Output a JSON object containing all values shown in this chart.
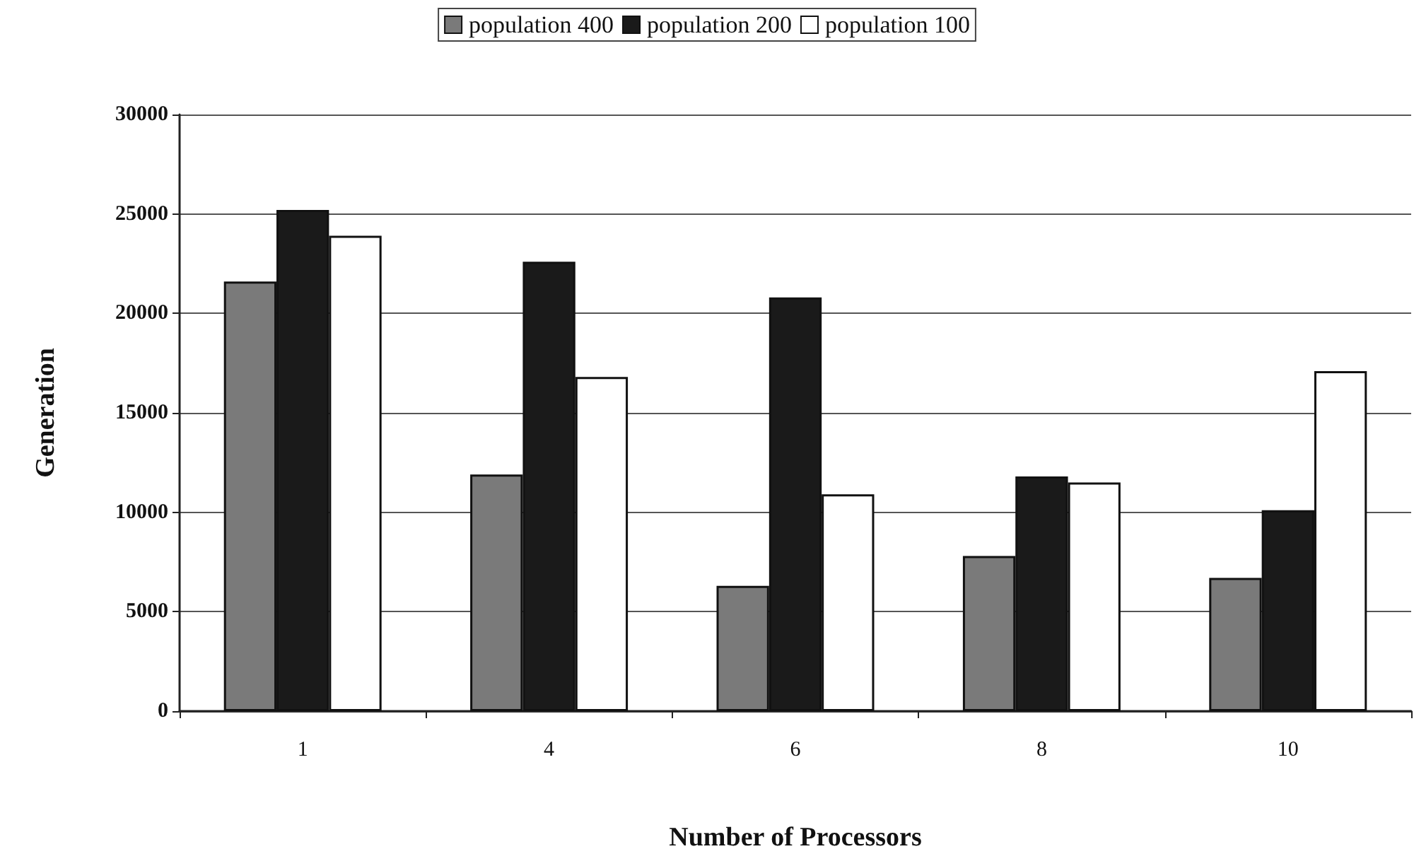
{
  "chart_data": {
    "type": "bar",
    "xlabel": "Number of Processors",
    "ylabel": "Generation",
    "categories": [
      "1",
      "4",
      "6",
      "8",
      "10"
    ],
    "series": [
      {
        "name": "population 400",
        "color": "#7a7a7a",
        "values": [
          21600,
          11900,
          6300,
          7800,
          6700
        ]
      },
      {
        "name": "population 200",
        "color": "#1a1a1a",
        "values": [
          25200,
          22600,
          20800,
          11800,
          10100
        ]
      },
      {
        "name": "population 100",
        "color": "#ffffff",
        "values": [
          23900,
          16800,
          10900,
          11500,
          17100
        ]
      }
    ],
    "ylim": [
      0,
      30000
    ],
    "yticks": [
      0,
      5000,
      10000,
      15000,
      20000,
      25000,
      30000
    ],
    "grid": "y",
    "legend": "top"
  }
}
